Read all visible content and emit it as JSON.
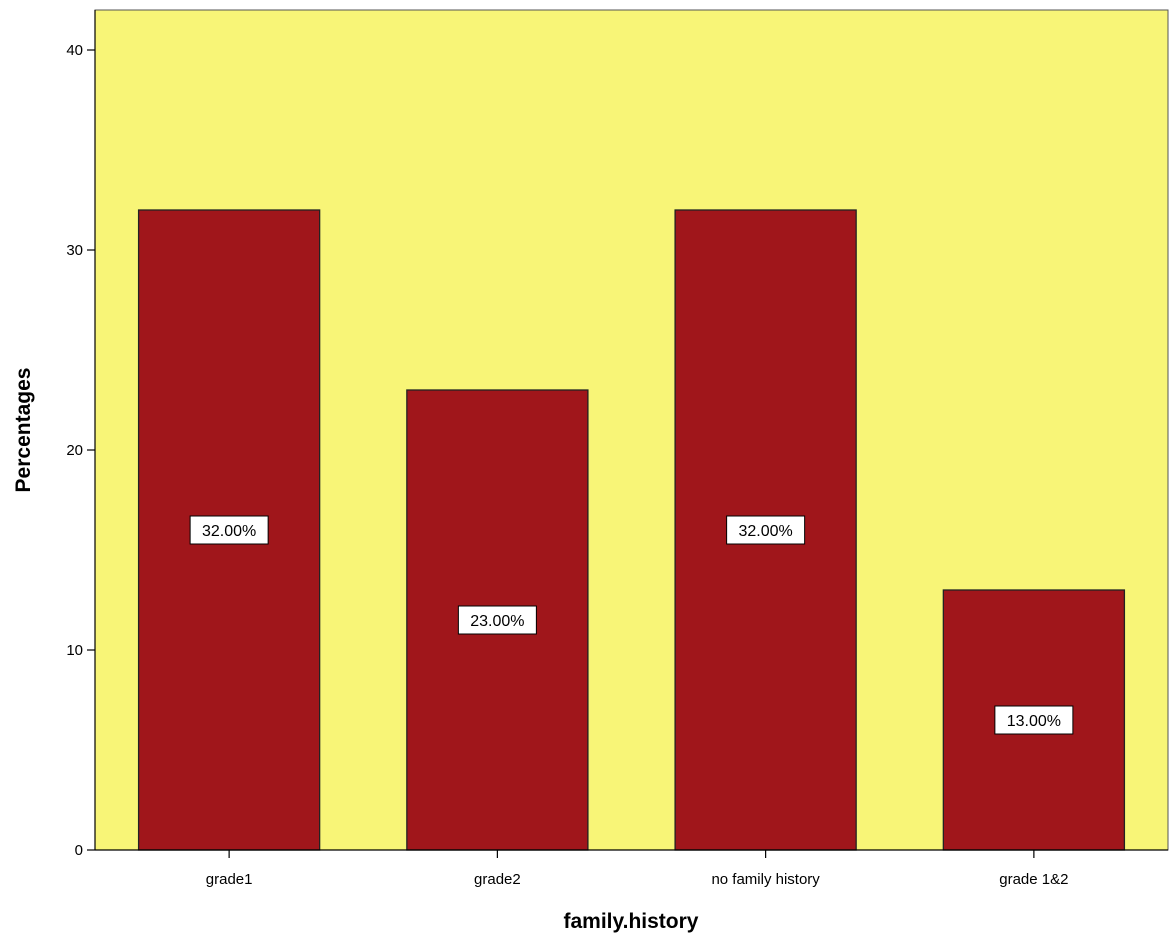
{
  "chart_data": {
    "type": "bar",
    "categories": [
      "grade1",
      "grade2",
      "no family history",
      "grade 1&2"
    ],
    "values": [
      32.0,
      23.0,
      32.0,
      13.0
    ],
    "data_labels": [
      "32.00%",
      "23.00%",
      "32.00%",
      "13.00%"
    ],
    "title": "",
    "xlabel": "family.history",
    "ylabel": "Percentages",
    "ylim": [
      0,
      42
    ],
    "yticks": [
      0,
      10,
      20,
      30,
      40
    ],
    "grid": false,
    "legend": "none",
    "colors": {
      "plot_background": "#f8f577",
      "bar_fill": "#a0161b",
      "bar_stroke": "#222222",
      "label_box": "#ffffff"
    }
  }
}
